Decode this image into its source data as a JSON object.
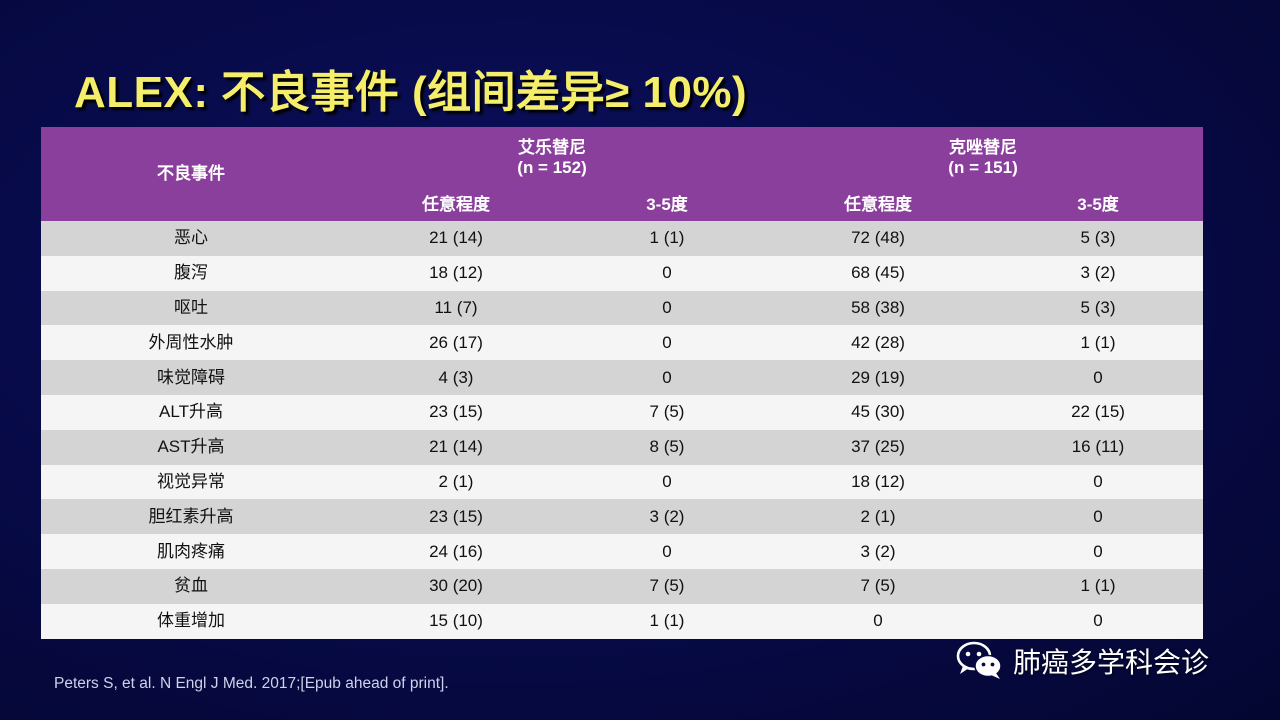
{
  "title": "ALEX: 不良事件 (组间差异≥ 10%)",
  "table": {
    "event_header": "不良事件",
    "groups": [
      {
        "name": "艾乐替尼",
        "n": "(n = 152)"
      },
      {
        "name": "克唑替尼",
        "n": "(n = 151)"
      }
    ],
    "subheaders": [
      "任意程度",
      "3-5度",
      "任意程度",
      "3-5度"
    ],
    "rows": [
      [
        "恶心",
        "21 (14)",
        "1 (1)",
        "72 (48)",
        "5 (3)"
      ],
      [
        "腹泻",
        "18 (12)",
        "0",
        "68 (45)",
        "3 (2)"
      ],
      [
        "呕吐",
        "11 (7)",
        "0",
        "58 (38)",
        "5 (3)"
      ],
      [
        "外周性水肿",
        "26 (17)",
        "0",
        "42 (28)",
        "1 (1)"
      ],
      [
        "味觉障碍",
        "4 (3)",
        "0",
        "29 (19)",
        "0"
      ],
      [
        "ALT升高",
        "23 (15)",
        "7 (5)",
        "45 (30)",
        "22 (15)"
      ],
      [
        "AST升高",
        "21 (14)",
        "8 (5)",
        "37 (25)",
        "16 (11)"
      ],
      [
        "视觉异常",
        "2 (1)",
        "0",
        "18 (12)",
        "0"
      ],
      [
        "胆红素升高",
        "23 (15)",
        "3 (2)",
        "2 (1)",
        "0"
      ],
      [
        "肌肉疼痛",
        "24 (16)",
        "0",
        "3 (2)",
        "0"
      ],
      [
        "贫血",
        "30 (20)",
        "7 (5)",
        "7 (5)",
        "1 (1)"
      ],
      [
        "体重增加",
        "15 (10)",
        "1 (1)",
        "0",
        "0"
      ]
    ]
  },
  "citation": "Peters S, et al. N Engl J Med. 2017;[Epub ahead of print].",
  "watermark": {
    "text": "肺癌多学科会诊",
    "icon": "wechat-icon"
  },
  "colors": {
    "background": "#070a46",
    "title": "#f4ee6a",
    "header": "#8a3f9c",
    "row_dark": "#d4d4d4",
    "row_light": "#f5f5f5"
  }
}
